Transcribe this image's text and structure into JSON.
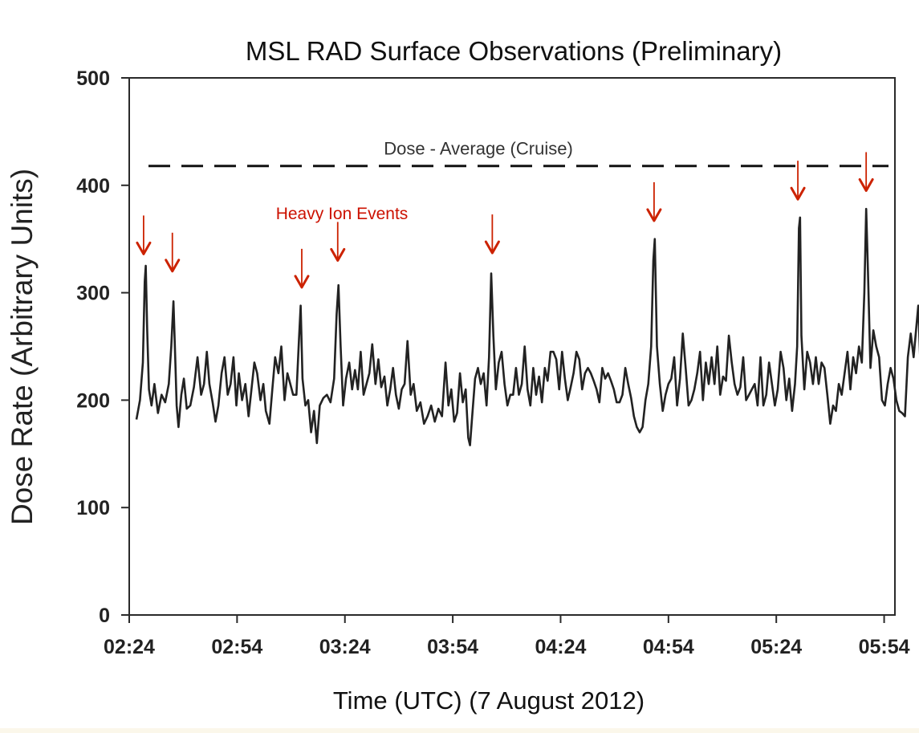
{
  "chart_data": {
    "type": "line",
    "title": "MSL RAD Surface Observations (Preliminary)",
    "xlabel": "Time (UTC) (7 August 2012)",
    "ylabel": "Dose Rate (Arbitrary Units)",
    "x_tick_labels": [
      "02:24",
      "02:54",
      "03:24",
      "03:54",
      "04:24",
      "04:54",
      "05:24",
      "05:54"
    ],
    "x_tick_minutes": [
      144,
      174,
      204,
      234,
      264,
      294,
      324,
      354
    ],
    "xlim": [
      144,
      357
    ],
    "ylim": [
      0,
      500
    ],
    "y_ticks": [
      0,
      100,
      200,
      300,
      400,
      500
    ],
    "y_tick_labels": [
      "0",
      "100",
      "200",
      "300",
      "400",
      "500"
    ],
    "grid": false,
    "reference_line": {
      "label": "Dose - Average (Cruise)",
      "y": 418,
      "style": "dashed",
      "color": "#111111"
    },
    "event_label": "Heavy Ion Events",
    "event_color": "#cc2200",
    "event_arrows": [
      {
        "x": 148,
        "y": 336
      },
      {
        "x": 156,
        "y": 320
      },
      {
        "x": 192,
        "y": 305
      },
      {
        "x": 202,
        "y": 330
      },
      {
        "x": 245,
        "y": 337
      },
      {
        "x": 290,
        "y": 367
      },
      {
        "x": 330,
        "y": 387
      },
      {
        "x": 349,
        "y": 395
      }
    ],
    "series": [
      {
        "color": "#222222",
        "points": [
          [
            146,
            182
          ],
          [
            147,
            200
          ],
          [
            147.8,
            235
          ],
          [
            148.3,
            310
          ],
          [
            148.6,
            325
          ],
          [
            149,
            265
          ],
          [
            149.5,
            210
          ],
          [
            150.2,
            195
          ],
          [
            151,
            215
          ],
          [
            152,
            188
          ],
          [
            153,
            205
          ],
          [
            154,
            198
          ],
          [
            155,
            215
          ],
          [
            155.7,
            250
          ],
          [
            156.3,
            292
          ],
          [
            156.8,
            240
          ],
          [
            157.2,
            195
          ],
          [
            157.7,
            175
          ],
          [
            158.5,
            205
          ],
          [
            159.2,
            220
          ],
          [
            160,
            192
          ],
          [
            161,
            195
          ],
          [
            162,
            212
          ],
          [
            163,
            240
          ],
          [
            164,
            205
          ],
          [
            164.8,
            215
          ],
          [
            165.6,
            245
          ],
          [
            166.3,
            215
          ],
          [
            167.2,
            198
          ],
          [
            168,
            180
          ],
          [
            168.8,
            195
          ],
          [
            169.7,
            225
          ],
          [
            170.5,
            240
          ],
          [
            171.4,
            205
          ],
          [
            172.2,
            215
          ],
          [
            173,
            240
          ],
          [
            173.8,
            195
          ],
          [
            174.5,
            225
          ],
          [
            175.4,
            200
          ],
          [
            176.3,
            215
          ],
          [
            177.2,
            185
          ],
          [
            178,
            210
          ],
          [
            178.8,
            235
          ],
          [
            179.6,
            225
          ],
          [
            180.5,
            200
          ],
          [
            181.3,
            215
          ],
          [
            182,
            190
          ],
          [
            183,
            178
          ],
          [
            183.8,
            210
          ],
          [
            184.6,
            240
          ],
          [
            185.5,
            225
          ],
          [
            186.3,
            250
          ],
          [
            187.2,
            200
          ],
          [
            188,
            225
          ],
          [
            188.8,
            215
          ],
          [
            189.6,
            205
          ],
          [
            190.5,
            205
          ],
          [
            191.2,
            255
          ],
          [
            191.7,
            288
          ],
          [
            192.2,
            220
          ],
          [
            193,
            195
          ],
          [
            193.8,
            200
          ],
          [
            194.6,
            170
          ],
          [
            195.4,
            190
          ],
          [
            196.2,
            160
          ],
          [
            197,
            195
          ],
          [
            198,
            202
          ],
          [
            199,
            205
          ],
          [
            200,
            198
          ],
          [
            201,
            220
          ],
          [
            201.7,
            280
          ],
          [
            202.2,
            307
          ],
          [
            202.8,
            250
          ],
          [
            203.5,
            195
          ],
          [
            204.3,
            220
          ],
          [
            205.2,
            235
          ],
          [
            206,
            210
          ],
          [
            206.8,
            228
          ],
          [
            207.6,
            210
          ],
          [
            208.4,
            245
          ],
          [
            209.2,
            205
          ],
          [
            210,
            215
          ],
          [
            210.8,
            225
          ],
          [
            211.6,
            252
          ],
          [
            212.5,
            215
          ],
          [
            213.3,
            238
          ],
          [
            214.1,
            212
          ],
          [
            215,
            222
          ],
          [
            215.8,
            195
          ],
          [
            216.6,
            210
          ],
          [
            217.4,
            230
          ],
          [
            218.2,
            205
          ],
          [
            219,
            192
          ],
          [
            219.8,
            210
          ],
          [
            220.6,
            215
          ],
          [
            221.4,
            255
          ],
          [
            222.3,
            205
          ],
          [
            223.1,
            215
          ],
          [
            224,
            190
          ],
          [
            225,
            198
          ],
          [
            226,
            178
          ],
          [
            227,
            185
          ],
          [
            228,
            195
          ],
          [
            229,
            180
          ],
          [
            230,
            192
          ],
          [
            231,
            185
          ],
          [
            232,
            235
          ],
          [
            232.8,
            195
          ],
          [
            233.6,
            210
          ],
          [
            234.4,
            180
          ],
          [
            235.2,
            188
          ],
          [
            236,
            225
          ],
          [
            236.8,
            198
          ],
          [
            237.6,
            210
          ],
          [
            238.3,
            165
          ],
          [
            238.8,
            158
          ],
          [
            239.4,
            185
          ],
          [
            240.2,
            220
          ],
          [
            241,
            230
          ],
          [
            241.8,
            215
          ],
          [
            242.6,
            225
          ],
          [
            243.4,
            195
          ],
          [
            244.1,
            240
          ],
          [
            244.7,
            318
          ],
          [
            245.3,
            260
          ],
          [
            246,
            210
          ],
          [
            246.8,
            235
          ],
          [
            247.6,
            245
          ],
          [
            248.4,
            215
          ],
          [
            249.2,
            195
          ],
          [
            250,
            205
          ],
          [
            250.8,
            205
          ],
          [
            251.6,
            230
          ],
          [
            252.4,
            205
          ],
          [
            253.2,
            215
          ],
          [
            254,
            250
          ],
          [
            254.8,
            210
          ],
          [
            255.6,
            195
          ],
          [
            256.4,
            230
          ],
          [
            257.2,
            205
          ],
          [
            258,
            222
          ],
          [
            258.8,
            198
          ],
          [
            259.6,
            230
          ],
          [
            260.4,
            218
          ],
          [
            261.2,
            245
          ],
          [
            262,
            245
          ],
          [
            262.8,
            238
          ],
          [
            263.6,
            210
          ],
          [
            264.4,
            245
          ],
          [
            265.2,
            220
          ],
          [
            266,
            200
          ],
          [
            266.8,
            212
          ],
          [
            267.6,
            225
          ],
          [
            268.4,
            245
          ],
          [
            269.2,
            238
          ],
          [
            270,
            210
          ],
          [
            270.8,
            225
          ],
          [
            271.6,
            230
          ],
          [
            272.4,
            225
          ],
          [
            273.2,
            218
          ],
          [
            274,
            210
          ],
          [
            274.8,
            198
          ],
          [
            275.6,
            230
          ],
          [
            276.4,
            220
          ],
          [
            277.2,
            225
          ],
          [
            278,
            218
          ],
          [
            278.8,
            210
          ],
          [
            279.6,
            198
          ],
          [
            280.4,
            198
          ],
          [
            281.2,
            205
          ],
          [
            282,
            230
          ],
          [
            282.8,
            215
          ],
          [
            283.6,
            202
          ],
          [
            284.4,
            185
          ],
          [
            285.2,
            175
          ],
          [
            286,
            170
          ],
          [
            286.8,
            175
          ],
          [
            287.6,
            200
          ],
          [
            288.4,
            215
          ],
          [
            289.2,
            250
          ],
          [
            289.8,
            330
          ],
          [
            290.2,
            350
          ],
          [
            290.8,
            250
          ],
          [
            291.6,
            215
          ],
          [
            292.4,
            190
          ],
          [
            293.2,
            205
          ],
          [
            294,
            215
          ],
          [
            294.8,
            220
          ],
          [
            295.6,
            240
          ],
          [
            296.4,
            195
          ],
          [
            297.2,
            220
          ],
          [
            298,
            262
          ],
          [
            298.8,
            230
          ],
          [
            299.6,
            195
          ],
          [
            300.4,
            200
          ],
          [
            301.2,
            210
          ],
          [
            302,
            225
          ],
          [
            302.8,
            245
          ],
          [
            303.6,
            200
          ],
          [
            304.4,
            235
          ],
          [
            305.2,
            215
          ],
          [
            306,
            240
          ],
          [
            306.8,
            215
          ],
          [
            307.6,
            250
          ],
          [
            308.4,
            205
          ],
          [
            309.2,
            222
          ],
          [
            310,
            218
          ],
          [
            310.8,
            260
          ],
          [
            311.6,
            235
          ],
          [
            312.4,
            215
          ],
          [
            313.2,
            205
          ],
          [
            314,
            212
          ],
          [
            314.8,
            240
          ],
          [
            315.6,
            200
          ],
          [
            316.4,
            205
          ],
          [
            317.2,
            210
          ],
          [
            318,
            215
          ],
          [
            318.8,
            195
          ],
          [
            319.6,
            240
          ],
          [
            320.4,
            195
          ],
          [
            321.2,
            205
          ],
          [
            322,
            235
          ],
          [
            322.8,
            215
          ],
          [
            323.6,
            195
          ],
          [
            324.4,
            210
          ],
          [
            325.2,
            245
          ],
          [
            326,
            230
          ],
          [
            326.8,
            200
          ],
          [
            327.6,
            220
          ],
          [
            328.4,
            190
          ],
          [
            329.2,
            215
          ],
          [
            329.8,
            250
          ],
          [
            330.3,
            360
          ],
          [
            330.6,
            370
          ],
          [
            331,
            260
          ],
          [
            331.8,
            210
          ],
          [
            332.6,
            245
          ],
          [
            333.4,
            235
          ],
          [
            334.2,
            215
          ],
          [
            335,
            240
          ],
          [
            335.8,
            215
          ],
          [
            336.6,
            235
          ],
          [
            337.4,
            230
          ],
          [
            338.2,
            205
          ],
          [
            339,
            178
          ],
          [
            339.8,
            195
          ],
          [
            340.6,
            190
          ],
          [
            341.4,
            215
          ],
          [
            342.2,
            205
          ],
          [
            343,
            225
          ],
          [
            343.8,
            245
          ],
          [
            344.6,
            210
          ],
          [
            345.4,
            240
          ],
          [
            346.2,
            225
          ],
          [
            347,
            250
          ],
          [
            347.8,
            235
          ],
          [
            348.5,
            300
          ],
          [
            349,
            378
          ],
          [
            349.5,
            320
          ],
          [
            350.2,
            230
          ],
          [
            351,
            265
          ],
          [
            351.8,
            250
          ],
          [
            352.6,
            240
          ],
          [
            353.4,
            200
          ],
          [
            354.2,
            195
          ],
          [
            355,
            215
          ],
          [
            355.8,
            230
          ],
          [
            356.6,
            220
          ],
          [
            357.4,
            200
          ],
          [
            358.2,
            190
          ],
          [
            359,
            188
          ],
          [
            359.8,
            185
          ],
          [
            360.6,
            240
          ],
          [
            361.4,
            262
          ],
          [
            362.2,
            240
          ],
          [
            363,
            270
          ],
          [
            363.5,
            288
          ],
          [
            364,
            240
          ],
          [
            364.4,
            215
          ]
        ]
      }
    ]
  }
}
